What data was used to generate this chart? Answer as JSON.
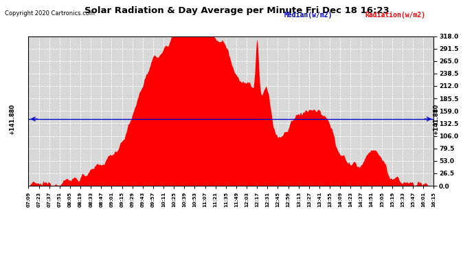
{
  "title": "Solar Radiation & Day Average per Minute Fri Dec 18 16:23",
  "copyright": "Copyright 2020 Cartronics.com",
  "legend_median": "Median(w/m2)",
  "legend_radiation": "Radiation(w/m2)",
  "median_value": 141.88,
  "yticks": [
    0.0,
    26.5,
    53.0,
    79.5,
    106.0,
    132.5,
    159.0,
    185.5,
    212.0,
    238.5,
    265.0,
    291.5,
    318.0
  ],
  "ylim": [
    0,
    318.0
  ],
  "background_color": "#d8d8d8",
  "fill_color": "#ff0000",
  "line_color": "#0000cc",
  "title_color": "#000000",
  "copyright_color": "#000000",
  "x_labels": [
    "07:09",
    "07:23",
    "07:37",
    "07:51",
    "08:05",
    "08:19",
    "08:33",
    "08:47",
    "09:01",
    "09:15",
    "09:29",
    "09:43",
    "09:57",
    "10:11",
    "10:25",
    "10:39",
    "10:53",
    "11:07",
    "11:21",
    "11:35",
    "11:49",
    "12:03",
    "12:17",
    "12:31",
    "12:45",
    "12:59",
    "13:13",
    "13:27",
    "13:41",
    "13:55",
    "14:09",
    "14:23",
    "14:37",
    "14:51",
    "15:05",
    "15:19",
    "15:33",
    "15:47",
    "16:01",
    "16:15"
  ]
}
